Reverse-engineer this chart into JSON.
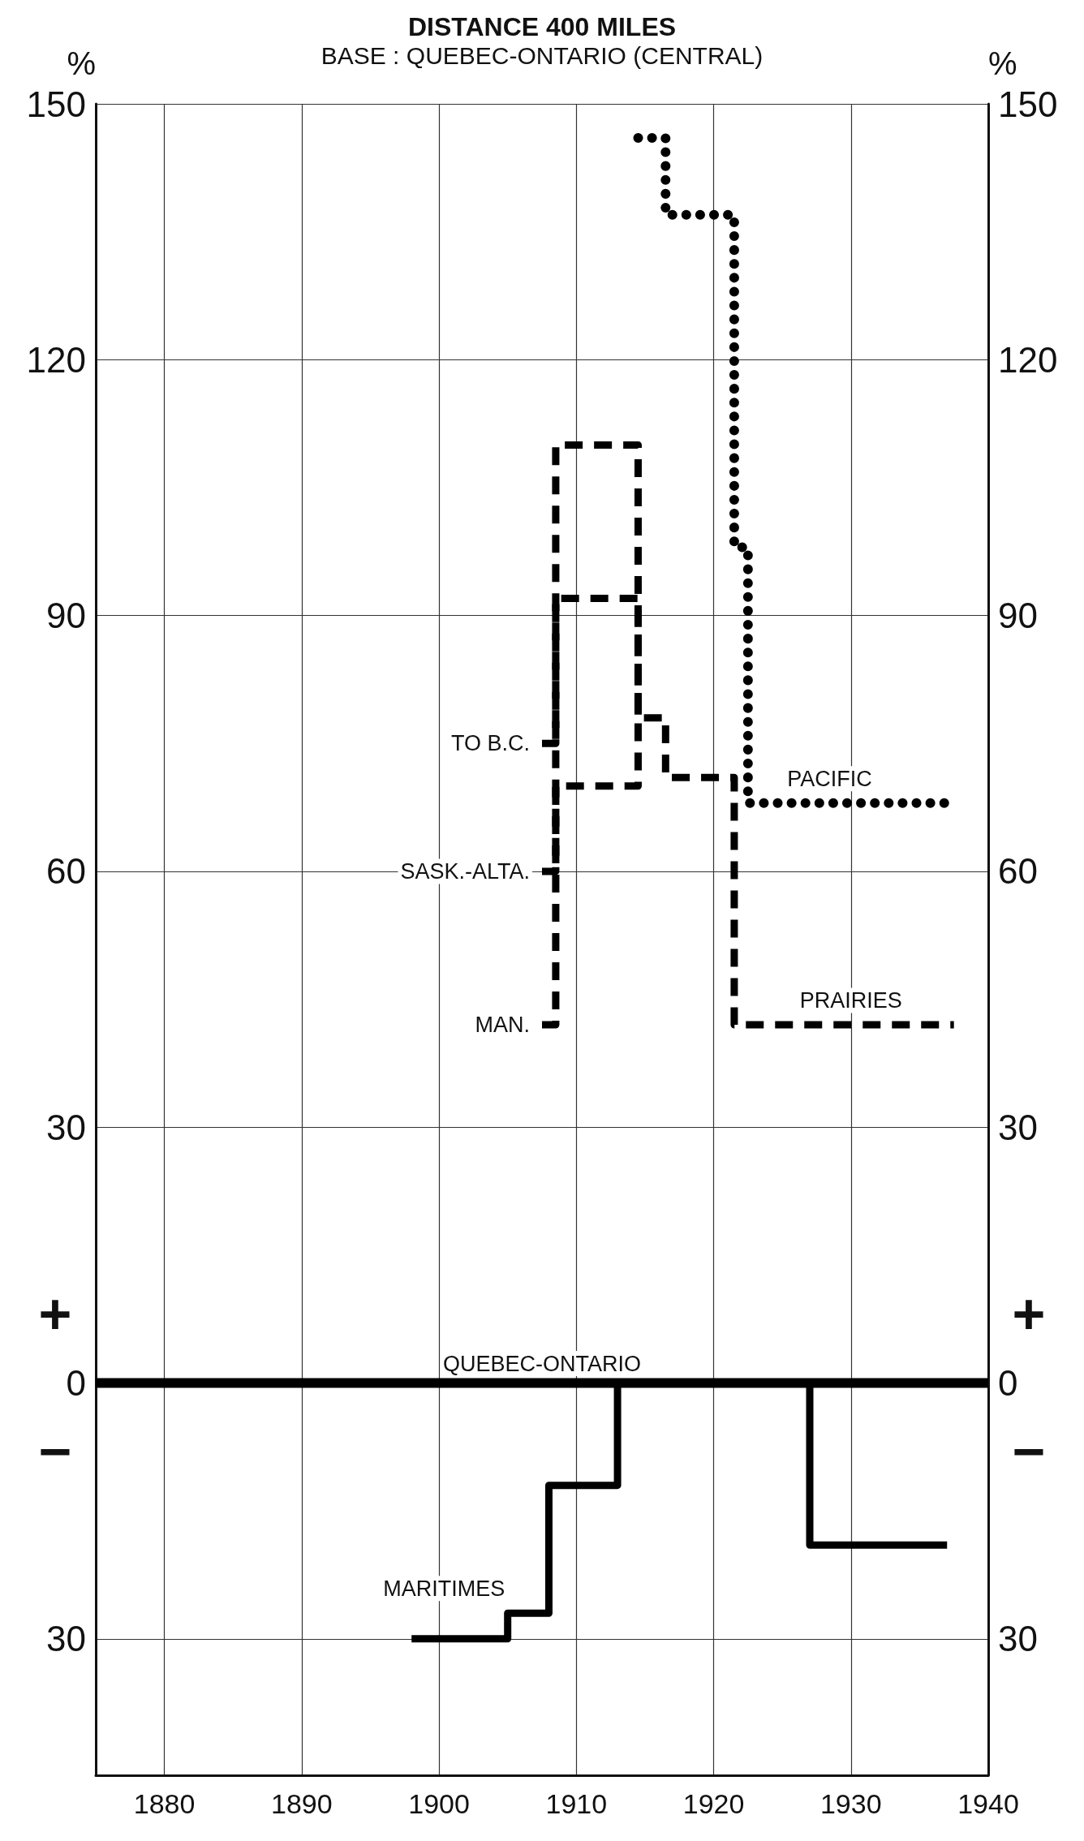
{
  "chart_data": {
    "type": "step",
    "title": "DISTANCE 400 MILES",
    "subtitle": "BASE : QUEBEC-ONTARIO (CENTRAL)",
    "ylabel": "%",
    "y2label": "%",
    "xlim": [
      1875,
      1940
    ],
    "xticks": [
      1880,
      1890,
      1900,
      1910,
      1920,
      1930,
      1940
    ],
    "ylim": [
      -46,
      150
    ],
    "yticks": [
      {
        "value": -30,
        "label": "30"
      },
      0,
      30,
      60,
      90,
      120,
      150
    ],
    "y2lim": [
      -46,
      150
    ],
    "y2ticks": [
      {
        "value": -30,
        "label": "30"
      },
      0,
      30,
      60,
      90,
      120,
      150
    ],
    "grid": true,
    "legend": false,
    "series": [
      {
        "name": "QUEBEC-ONTARIO",
        "color": "#000000",
        "line_style": "solid",
        "x": [
          1875,
          1940
        ],
        "values": [
          0,
          0
        ]
      },
      {
        "name": "MARITIMES",
        "color": "#000000",
        "line_style": "solid",
        "x": [
          1898,
          1905,
          1908,
          1913,
          1927,
          1937
        ],
        "values": [
          -30,
          -27,
          -12,
          0,
          -19,
          -19
        ]
      },
      {
        "name": "PACIFIC",
        "color": "#000000",
        "line_style": "dotted",
        "x": [
          1914.5,
          1916.5,
          1921.5,
          1922.5,
          1937
        ],
        "values": [
          146,
          137,
          98,
          68,
          68
        ]
      },
      {
        "name": "TO B.C.",
        "color": "#000000",
        "line_style": "dashed",
        "x": [
          1907.5,
          1908.5,
          1914.5
        ],
        "values": [
          75,
          110,
          78
        ]
      },
      {
        "name": "SASK.-ALTA.",
        "color": "#000000",
        "line_style": "dashed",
        "x": [
          1907.5,
          1908.5,
          1914.5
        ],
        "values": [
          60,
          92,
          78
        ]
      },
      {
        "name": "MAN.",
        "color": "#000000",
        "line_style": "dashed",
        "x": [
          1907.5,
          1908.5,
          1914.5,
          1916.5,
          1921.5,
          1937.5
        ],
        "values": [
          42,
          70,
          78,
          71,
          42,
          42
        ]
      }
    ],
    "annotations": [
      {
        "text": "PRAIRIES",
        "x": 1930,
        "y": 42
      },
      "+",
      "−",
      "+",
      "−"
    ]
  }
}
